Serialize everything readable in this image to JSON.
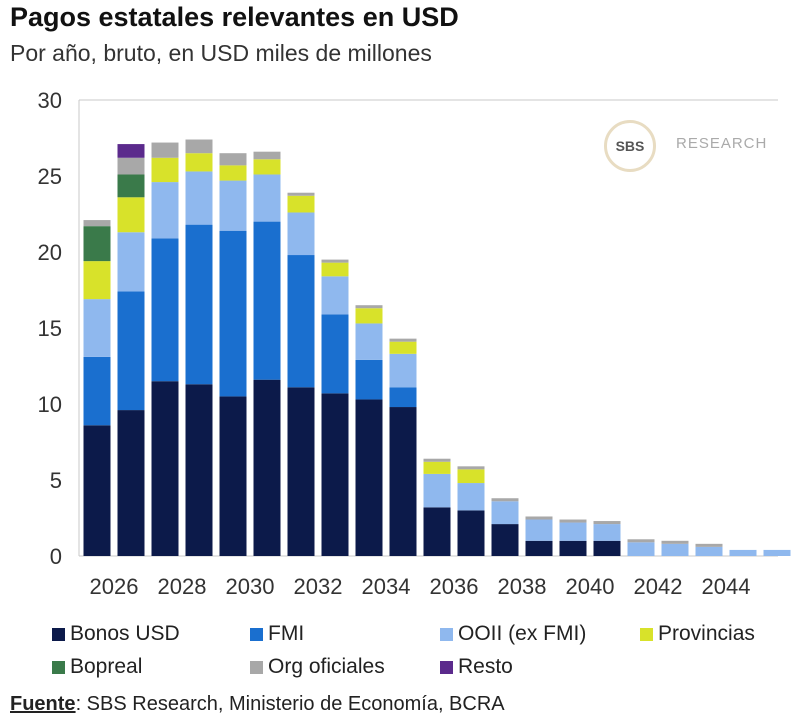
{
  "header": {
    "title": "Pagos estatales relevantes en USD",
    "subtitle": "Por año, bruto, en USD miles de millones"
  },
  "logo": {
    "mark": "SBS",
    "text": "RESEARCH"
  },
  "source": {
    "label": "Fuente",
    "text": ": SBS Research, Ministerio de Economía, BCRA"
  },
  "chart_data": {
    "type": "bar",
    "stacked": true,
    "title": "Pagos estatales relevantes en USD",
    "subtitle": "Por año, bruto, en USD miles de millones",
    "x": [
      2026,
      2027,
      2028,
      2029,
      2030,
      2031,
      2032,
      2033,
      2034,
      2035,
      2036,
      2037,
      2038,
      2039,
      2040,
      2041,
      2042,
      2043,
      2044,
      2045,
      2046
    ],
    "x_tick_labels": [
      "2026",
      "2028",
      "2030",
      "2032",
      "2034",
      "2036",
      "2038",
      "2040",
      "2042",
      "2044"
    ],
    "ylim": [
      0,
      30
    ],
    "y_ticks": [
      0,
      5,
      10,
      15,
      20,
      25,
      30
    ],
    "grid": false,
    "legend_position": "bottom",
    "series": [
      {
        "name": "Bonos USD",
        "color": "#0c1a4a",
        "values": [
          8.6,
          9.6,
          11.5,
          11.3,
          10.5,
          11.6,
          11.1,
          10.7,
          10.3,
          9.8,
          3.2,
          3.0,
          2.1,
          1.0,
          1.0,
          1.0,
          0,
          0,
          0,
          0,
          0
        ]
      },
      {
        "name": "FMI",
        "color": "#1a6fcf",
        "values": [
          4.5,
          7.8,
          9.4,
          10.5,
          10.9,
          10.4,
          8.7,
          5.2,
          2.6,
          1.3,
          0,
          0,
          0,
          0,
          0,
          0,
          0,
          0,
          0,
          0,
          0
        ]
      },
      {
        "name": "OOII (ex FMI)",
        "color": "#8fb8ee",
        "values": [
          3.8,
          3.9,
          3.7,
          3.5,
          3.3,
          3.1,
          2.8,
          2.5,
          2.4,
          2.2,
          2.2,
          1.8,
          1.5,
          1.4,
          1.2,
          1.1,
          0.9,
          0.8,
          0.6,
          0.4,
          0.4
        ]
      },
      {
        "name": "Provincias",
        "color": "#d8e22a",
        "values": [
          2.5,
          2.3,
          1.6,
          1.2,
          1.0,
          1.0,
          1.1,
          0.9,
          1.0,
          0.8,
          0.8,
          0.9,
          0,
          0,
          0,
          0,
          0,
          0,
          0,
          0,
          0
        ]
      },
      {
        "name": "Bopreal",
        "color": "#3a7a4a",
        "values": [
          2.3,
          1.5,
          0,
          0,
          0,
          0,
          0,
          0,
          0,
          0,
          0,
          0,
          0,
          0,
          0,
          0,
          0,
          0,
          0,
          0,
          0
        ]
      },
      {
        "name": "Org oficiales",
        "color": "#a8a8a8",
        "values": [
          0.4,
          1.1,
          1.0,
          0.9,
          0.8,
          0.5,
          0.2,
          0.2,
          0.2,
          0.2,
          0.2,
          0.2,
          0.2,
          0.2,
          0.2,
          0.2,
          0.2,
          0.2,
          0.2,
          0,
          0
        ]
      },
      {
        "name": "Resto",
        "color": "#5b2a8c",
        "values": [
          0,
          0.9,
          0,
          0,
          0,
          0,
          0,
          0,
          0,
          0,
          0,
          0,
          0,
          0,
          0,
          0,
          0,
          0,
          0,
          0,
          0
        ]
      }
    ]
  }
}
